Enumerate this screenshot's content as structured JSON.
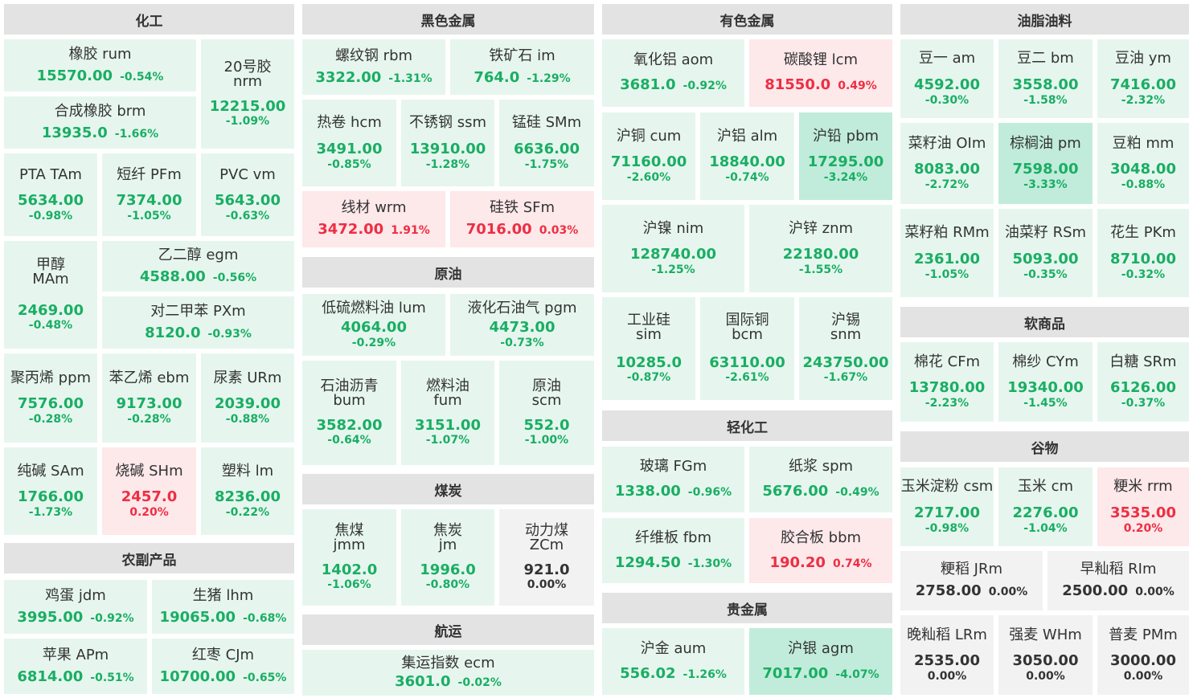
{
  "colors": {
    "down": "#1aae63",
    "up": "#ee2e43",
    "flat": "#333333",
    "down_bg": "#e6f6ef",
    "down_bg_strong": "#c1ecdb",
    "up_bg": "#fde8ea",
    "flat_bg": "#f2f2f2",
    "header_bg": "#e3e3e3"
  },
  "headers": {
    "chem": "化工",
    "agri": "农副产品",
    "ferrous": "黑色金属",
    "crude": "原油",
    "coal": "煤炭",
    "shipping": "航运",
    "nonferrous": "有色金属",
    "light": "轻化工",
    "precious": "贵金属",
    "oils": "油脂油料",
    "soft": "软商品",
    "grain": "谷物"
  },
  "cells": {
    "rum": {
      "name": "橡胶  rum",
      "price": "15570.00",
      "change": "-0.54%"
    },
    "nrm": {
      "name": "20号胶",
      "code": "nrm",
      "price": "12215.00",
      "change": "-1.09%"
    },
    "brm": {
      "name": "合成橡胶  brm",
      "price": "13935.0",
      "change": "-1.66%"
    },
    "TAm": {
      "name": "PTA  TAm",
      "price": "5634.00",
      "change": "-0.98%"
    },
    "PFm": {
      "name": "短纤  PFm",
      "price": "7374.00",
      "change": "-1.05%"
    },
    "vm": {
      "name": "PVC  vm",
      "price": "5643.00",
      "change": "-0.63%"
    },
    "MAm": {
      "name": "甲醇",
      "code": "MAm",
      "price": "2469.00",
      "change": "-0.48%"
    },
    "egm": {
      "name": "乙二醇  egm",
      "price": "4588.00",
      "change": "-0.56%"
    },
    "PXm": {
      "name": "对二甲苯  PXm",
      "price": "8120.0",
      "change": "-0.93%"
    },
    "ppm": {
      "name": "聚丙烯  ppm",
      "price": "7576.00",
      "change": "-0.28%"
    },
    "ebm": {
      "name": "苯乙烯  ebm",
      "price": "9173.00",
      "change": "-0.28%"
    },
    "URm": {
      "name": "尿素  URm",
      "price": "2039.00",
      "change": "-0.88%"
    },
    "SAm": {
      "name": "纯碱  SAm",
      "price": "1766.00",
      "change": "-1.73%"
    },
    "SHm": {
      "name": "烧碱  SHm",
      "price": "2457.0",
      "change": "0.20%"
    },
    "lm": {
      "name": "塑料  lm",
      "price": "8236.00",
      "change": "-0.22%"
    },
    "jdm": {
      "name": "鸡蛋  jdm",
      "price": "3995.00",
      "change": "-0.92%"
    },
    "lhm": {
      "name": "生猪  lhm",
      "price": "19065.00",
      "change": "-0.68%"
    },
    "APm": {
      "name": "苹果  APm",
      "price": "6814.00",
      "change": "-0.51%"
    },
    "CJm": {
      "name": "红枣  CJm",
      "price": "10700.00",
      "change": "-0.65%"
    },
    "rbm": {
      "name": "螺纹钢  rbm",
      "price": "3322.00",
      "change": "-1.31%"
    },
    "im": {
      "name": "铁矿石  im",
      "price": "764.0",
      "change": "-1.29%"
    },
    "hcm": {
      "name": "热卷  hcm",
      "price": "3491.00",
      "change": "-0.85%"
    },
    "ssm": {
      "name": "不锈钢  ssm",
      "price": "13910.00",
      "change": "-1.28%"
    },
    "SMm": {
      "name": "锰硅  SMm",
      "price": "6636.00",
      "change": "-1.75%"
    },
    "wrm": {
      "name": "线材  wrm",
      "price": "3472.00",
      "change": "1.91%"
    },
    "SFm": {
      "name": "硅铁  SFm",
      "price": "7016.00",
      "change": "0.03%"
    },
    "lum": {
      "name": "低硫燃料油  lum",
      "price": "4064.00",
      "change": "-0.29%"
    },
    "pgm": {
      "name": "液化石油气  pgm",
      "price": "4473.00",
      "change": "-0.73%"
    },
    "bum": {
      "name": "石油沥青",
      "code": "bum",
      "price": "3582.00",
      "change": "-0.64%"
    },
    "fum": {
      "name": "燃料油",
      "code": "fum",
      "price": "3151.00",
      "change": "-1.07%"
    },
    "scm": {
      "name": "原油",
      "code": "scm",
      "price": "552.0",
      "change": "-1.00%"
    },
    "jmm": {
      "name": "焦煤",
      "code": "jmm",
      "price": "1402.0",
      "change": "-1.06%"
    },
    "jm": {
      "name": "焦炭",
      "code": "jm",
      "price": "1996.0",
      "change": "-0.80%"
    },
    "ZCm": {
      "name": "动力煤",
      "code": "ZCm",
      "price": "921.0",
      "change": "0.00%"
    },
    "ecm": {
      "name": "集运指数  ecm",
      "price": "3601.0",
      "change": "-0.02%"
    },
    "aom": {
      "name": "氧化铝  aom",
      "price": "3681.0",
      "change": "-0.92%"
    },
    "lcm": {
      "name": "碳酸锂  lcm",
      "price": "81550.0",
      "change": "0.49%"
    },
    "cum": {
      "name": "沪铜  cum",
      "price": "71160.00",
      "change": "-2.60%"
    },
    "alm": {
      "name": "沪铝  alm",
      "price": "18840.00",
      "change": "-0.74%"
    },
    "pbm": {
      "name": "沪铅  pbm",
      "price": "17295.00",
      "change": "-3.24%"
    },
    "nim": {
      "name": "沪镍  nim",
      "price": "128740.00",
      "change": "-1.25%"
    },
    "znm": {
      "name": "沪锌  znm",
      "price": "22180.00",
      "change": "-1.55%"
    },
    "sim": {
      "name": "工业硅",
      "code": "sim",
      "price": "10285.0",
      "change": "-0.87%"
    },
    "bcm": {
      "name": "国际铜",
      "code": "bcm",
      "price": "63110.00",
      "change": "-2.61%"
    },
    "snm": {
      "name": "沪锡",
      "code": "snm",
      "price": "243750.00",
      "change": "-1.67%"
    },
    "FGm": {
      "name": "玻璃  FGm",
      "price": "1338.00",
      "change": "-0.96%"
    },
    "spm": {
      "name": "纸浆  spm",
      "price": "5676.00",
      "change": "-0.49%"
    },
    "fbm": {
      "name": "纤维板  fbm",
      "price": "1294.50",
      "change": "-1.30%"
    },
    "bbm": {
      "name": "胶合板  bbm",
      "price": "190.20",
      "change": "0.74%"
    },
    "aum": {
      "name": "沪金  aum",
      "price": "556.02",
      "change": "-1.26%"
    },
    "agm": {
      "name": "沪银  agm",
      "price": "7017.00",
      "change": "-4.07%"
    },
    "am": {
      "name": "豆一  am",
      "price": "4592.00",
      "change": "-0.30%"
    },
    "bm": {
      "name": "豆二  bm",
      "price": "3558.00",
      "change": "-1.58%"
    },
    "ym": {
      "name": "豆油  ym",
      "price": "7416.00",
      "change": "-2.32%"
    },
    "OIm": {
      "name": "菜籽油  OIm",
      "price": "8083.00",
      "change": "-2.72%"
    },
    "pm": {
      "name": "棕榈油  pm",
      "price": "7598.00",
      "change": "-3.33%"
    },
    "mm": {
      "name": "豆粕  mm",
      "price": "3048.00",
      "change": "-0.88%"
    },
    "RMm": {
      "name": "菜籽粕  RMm",
      "price": "2361.00",
      "change": "-1.05%"
    },
    "RSm": {
      "name": "油菜籽  RSm",
      "price": "5093.00",
      "change": "-0.35%"
    },
    "PKm": {
      "name": "花生  PKm",
      "price": "8710.00",
      "change": "-0.32%"
    },
    "CFm": {
      "name": "棉花  CFm",
      "price": "13780.00",
      "change": "-2.23%"
    },
    "CYm": {
      "name": "棉纱  CYm",
      "price": "19340.00",
      "change": "-1.45%"
    },
    "SRm": {
      "name": "白糖  SRm",
      "price": "6126.00",
      "change": "-0.37%"
    },
    "csm": {
      "name": "玉米淀粉  csm",
      "price": "2717.00",
      "change": "-0.98%"
    },
    "cm": {
      "name": "玉米  cm",
      "price": "2276.00",
      "change": "-1.04%"
    },
    "rrm": {
      "name": "粳米  rrm",
      "price": "3535.00",
      "change": "0.20%"
    },
    "JRm": {
      "name": "粳稻  JRm",
      "price": "2758.00",
      "change": "0.00%"
    },
    "RIm": {
      "name": "早籼稻  RIm",
      "price": "2500.00",
      "change": "0.00%"
    },
    "LRm": {
      "name": "晚籼稻  LRm",
      "price": "2535.00",
      "change": "0.00%"
    },
    "WHm": {
      "name": "强麦  WHm",
      "price": "3050.00",
      "change": "0.00%"
    },
    "PMm": {
      "name": "普麦  PMm",
      "price": "3000.00",
      "change": "0.00%"
    }
  }
}
